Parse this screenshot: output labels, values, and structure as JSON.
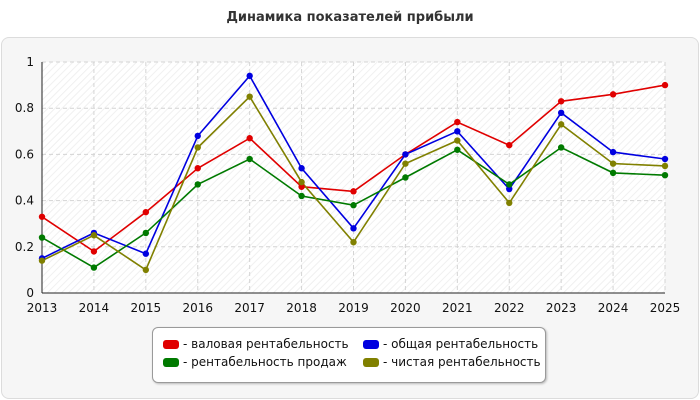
{
  "chart_data": {
    "type": "line",
    "title": "Динамика показателей прибыли",
    "categories": [
      "2013",
      "2014",
      "2015",
      "2016",
      "2017",
      "2018",
      "2019",
      "2020",
      "2021",
      "2022",
      "2023",
      "2024",
      "2025"
    ],
    "ylim": [
      0,
      1
    ],
    "yticks": [
      "0",
      "0.2",
      "0.4",
      "0.6",
      "0.8",
      "1"
    ],
    "grid": true,
    "legend_position": "bottom",
    "series": [
      {
        "name": "- валовая рентабельность",
        "color": "#e00000",
        "values": [
          0.33,
          0.18,
          0.35,
          0.54,
          0.67,
          0.46,
          0.44,
          0.6,
          0.74,
          0.64,
          0.83,
          0.86,
          0.9
        ]
      },
      {
        "name": "- общая рентабельность",
        "color": "#0000e0",
        "values": [
          0.15,
          0.26,
          0.17,
          0.68,
          0.94,
          0.54,
          0.28,
          0.6,
          0.7,
          0.45,
          0.78,
          0.61,
          0.58
        ]
      },
      {
        "name": "- рентабельность продаж",
        "color": "#007a00",
        "values": [
          0.24,
          0.11,
          0.26,
          0.47,
          0.58,
          0.42,
          0.38,
          0.5,
          0.62,
          0.47,
          0.63,
          0.52,
          0.51
        ]
      },
      {
        "name": "- чистая рентабельность",
        "color": "#808000",
        "values": [
          0.14,
          0.25,
          0.1,
          0.63,
          0.85,
          0.48,
          0.22,
          0.56,
          0.66,
          0.39,
          0.73,
          0.56,
          0.55
        ]
      }
    ]
  }
}
